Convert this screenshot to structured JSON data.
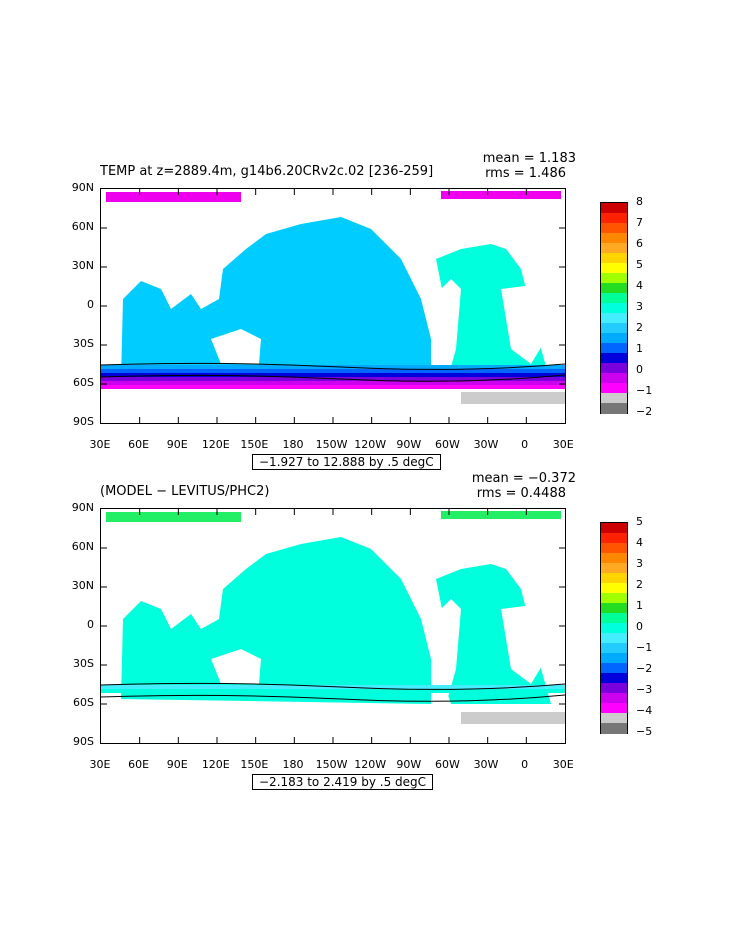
{
  "panels": [
    {
      "title": "TEMP at z=2889.4m, g14b6.20CRv2c.02 [236-259]",
      "mean_label": "mean = 1.183",
      "rms_label": "rms = 1.486",
      "range_label": "−1.927 to 12.888 by .5 degC",
      "colorbar_ticks": [
        "8",
        "7",
        "6",
        "5",
        "4",
        "3",
        "2",
        "1",
        "0",
        "−1",
        "−2"
      ],
      "colorbar_colors": [
        "#cc0000",
        "#ff2200",
        "#ff5500",
        "#ff8800",
        "#ffaa22",
        "#ffd400",
        "#ffff00",
        "#a0ff00",
        "#22dd22",
        "#00ff99",
        "#00ffdd",
        "#44eeff",
        "#22ccff",
        "#00aaff",
        "#0066ff",
        "#0000dd",
        "#7a00dd",
        "#cc00ee",
        "#ff00ff",
        "#cccccc",
        "#777777"
      ],
      "ocean_color": "#00ccff",
      "southern_colors": [
        "#00aaff",
        "#0066ff",
        "#0000dd",
        "#7a00dd",
        "#cc00ee",
        "#ff00ff"
      ],
      "arctic_color": "#ee00ee",
      "atlantic_color": "#00ffdd",
      "antarctic_color": "#cccccc"
    },
    {
      "title": "(MODEL − LEVITUS/PHC2)",
      "mean_label": "mean = −0.372",
      "rms_label": "rms = 0.4488",
      "range_label": "−2.183 to 2.419 by .5 degC",
      "colorbar_ticks": [
        "5",
        "4",
        "3",
        "2",
        "1",
        "0",
        "−1",
        "−2",
        "−3",
        "−4",
        "−5"
      ],
      "colorbar_colors": [
        "#cc0000",
        "#ff2200",
        "#ff5500",
        "#ff8800",
        "#ffaa22",
        "#ffd400",
        "#ffff00",
        "#a0ff00",
        "#22dd22",
        "#00ff99",
        "#00ffdd",
        "#44eeff",
        "#22ccff",
        "#00aaff",
        "#0066ff",
        "#0000dd",
        "#7a00dd",
        "#cc00ee",
        "#ff00ff",
        "#cccccc",
        "#777777"
      ],
      "ocean_color": "#00ffdd",
      "southern_colors": [
        "#44eeff",
        "#00ffdd"
      ],
      "arctic_color": "#22ee66",
      "atlantic_color": "#00ffdd",
      "antarctic_color": "#cccccc"
    }
  ],
  "lat_labels": [
    "90N",
    "60N",
    "30N",
    "0",
    "30S",
    "60S",
    "90S"
  ],
  "lon_labels": [
    "30E",
    "60E",
    "90E",
    "120E",
    "150E",
    "180",
    "150W",
    "120W",
    "90W",
    "60W",
    "30W",
    "0",
    "30E"
  ]
}
